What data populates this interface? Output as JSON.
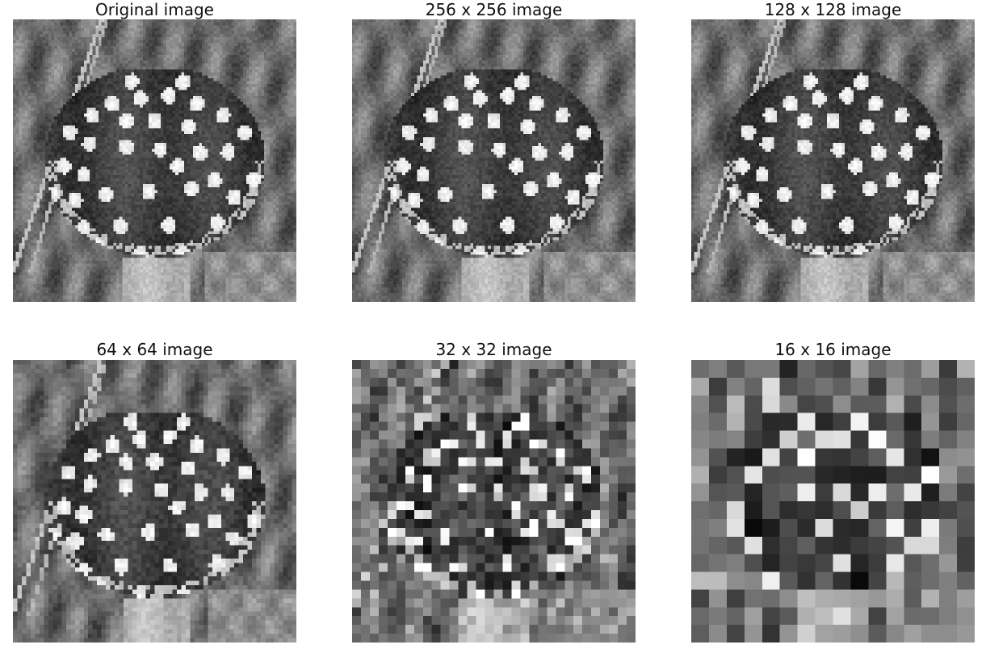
{
  "panels": [
    {
      "id": "original",
      "title": "Original image",
      "resolution": 512
    },
    {
      "id": "r256",
      "title": "256 x 256 image",
      "resolution": 256
    },
    {
      "id": "r128",
      "title": "128 x 128 image",
      "resolution": 128
    },
    {
      "id": "r64",
      "title": "64 x 64 image",
      "resolution": 64
    },
    {
      "id": "r32",
      "title": "32 x 32 image",
      "resolution": 32
    },
    {
      "id": "r16",
      "title": "16 x 16 image",
      "resolution": 16
    }
  ],
  "colors": {
    "background": "#ffffff",
    "title_text": "#111111",
    "cap_dark": "#2e2e2e",
    "wart_light": "#e6e6e6",
    "stem": "#c2c2c2",
    "foliage": "#6f6f6f"
  },
  "image_content": "grayscale photograph of a fly agaric mushroom with white warts on a dark cap, surrounded by dry grass"
}
